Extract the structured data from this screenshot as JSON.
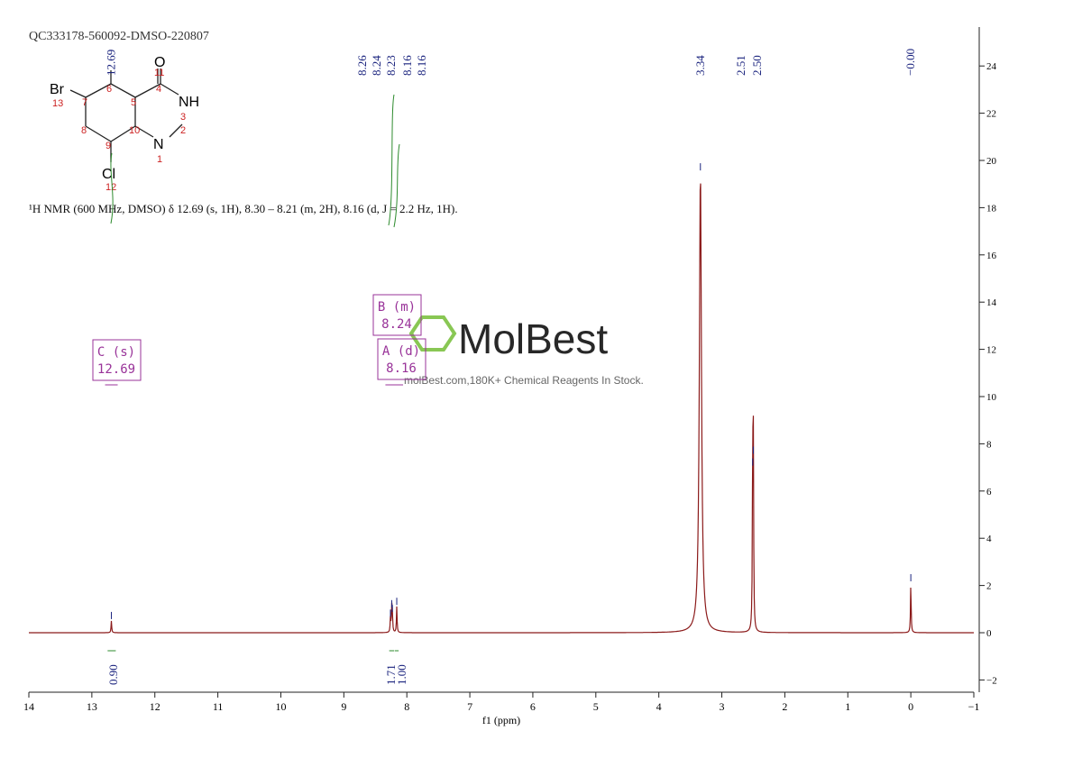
{
  "sample_id": "QC333178-560092-DMSO-220807",
  "structure": {
    "atoms": [
      "Br",
      "NH",
      "N",
      "O",
      "Cl"
    ],
    "numbers": [
      "1",
      "2",
      "3",
      "4",
      "5",
      "6",
      "7",
      "8",
      "9",
      "10",
      "11",
      "12",
      "13"
    ]
  },
  "description": "¹H NMR (600 MHz, DMSO) δ 12.69 (s, 1H), 8.30 – 8.21 (m, 2H), 8.16 (d, J = 2.2 Hz, 1H).",
  "watermark": {
    "brand": "MolBest",
    "tagline": "molBest.com,180K+ Chemical Reagents In Stock."
  },
  "colors": {
    "spectrum": "#8b1a1a",
    "integral": "#2e8b2e",
    "peak_label": "#1a237e",
    "multiplet": "#993399",
    "structure_number": "#cc2222"
  },
  "chart_data": {
    "type": "line",
    "xlabel": "f1 (ppm)",
    "xlim": [
      14,
      -1
    ],
    "ylim": [
      -2.5,
      25.5
    ],
    "x_ticks": [
      "14",
      "13",
      "12",
      "11",
      "10",
      "9",
      "8",
      "7",
      "6",
      "5",
      "4",
      "3",
      "2",
      "1",
      "0",
      "-1"
    ],
    "y_ticks": [
      "-2",
      "0",
      "2",
      "4",
      "6",
      "8",
      "10",
      "12",
      "14",
      "16",
      "18",
      "20",
      "22",
      "24"
    ],
    "peaks": [
      {
        "ppm": 12.69,
        "height": 0.5
      },
      {
        "ppm": 8.26,
        "height": 0.6
      },
      {
        "ppm": 8.24,
        "height": 1.0
      },
      {
        "ppm": 8.23,
        "height": 0.8
      },
      {
        "ppm": 8.16,
        "height": 1.1
      },
      {
        "ppm": 3.34,
        "height": 19.5
      },
      {
        "ppm": 2.51,
        "height": 7.0
      },
      {
        "ppm": 2.5,
        "height": 7.5
      },
      {
        "ppm": 0.0,
        "height": 2.1
      }
    ],
    "peak_labels": {
      "12.69": [
        "12.69"
      ],
      "aromatic": [
        "8.26",
        "8.24",
        "8.23",
        "8.16",
        "8.16"
      ],
      "water": [
        "3.34"
      ],
      "dmso": [
        "2.51",
        "2.50"
      ],
      "tms": [
        "-0.00"
      ]
    },
    "integrals": [
      {
        "range": [
          12.75,
          12.62
        ],
        "value": "0.90"
      },
      {
        "range": [
          8.28,
          8.2
        ],
        "value": "1.71"
      },
      {
        "range": [
          8.19,
          8.13
        ],
        "value": "1.00"
      }
    ],
    "multiplets": [
      {
        "name": "C (s)",
        "shift": "12.69"
      },
      {
        "name": "B (m)",
        "shift": "8.24"
      },
      {
        "name": "A (d)",
        "shift": "8.16"
      }
    ]
  }
}
